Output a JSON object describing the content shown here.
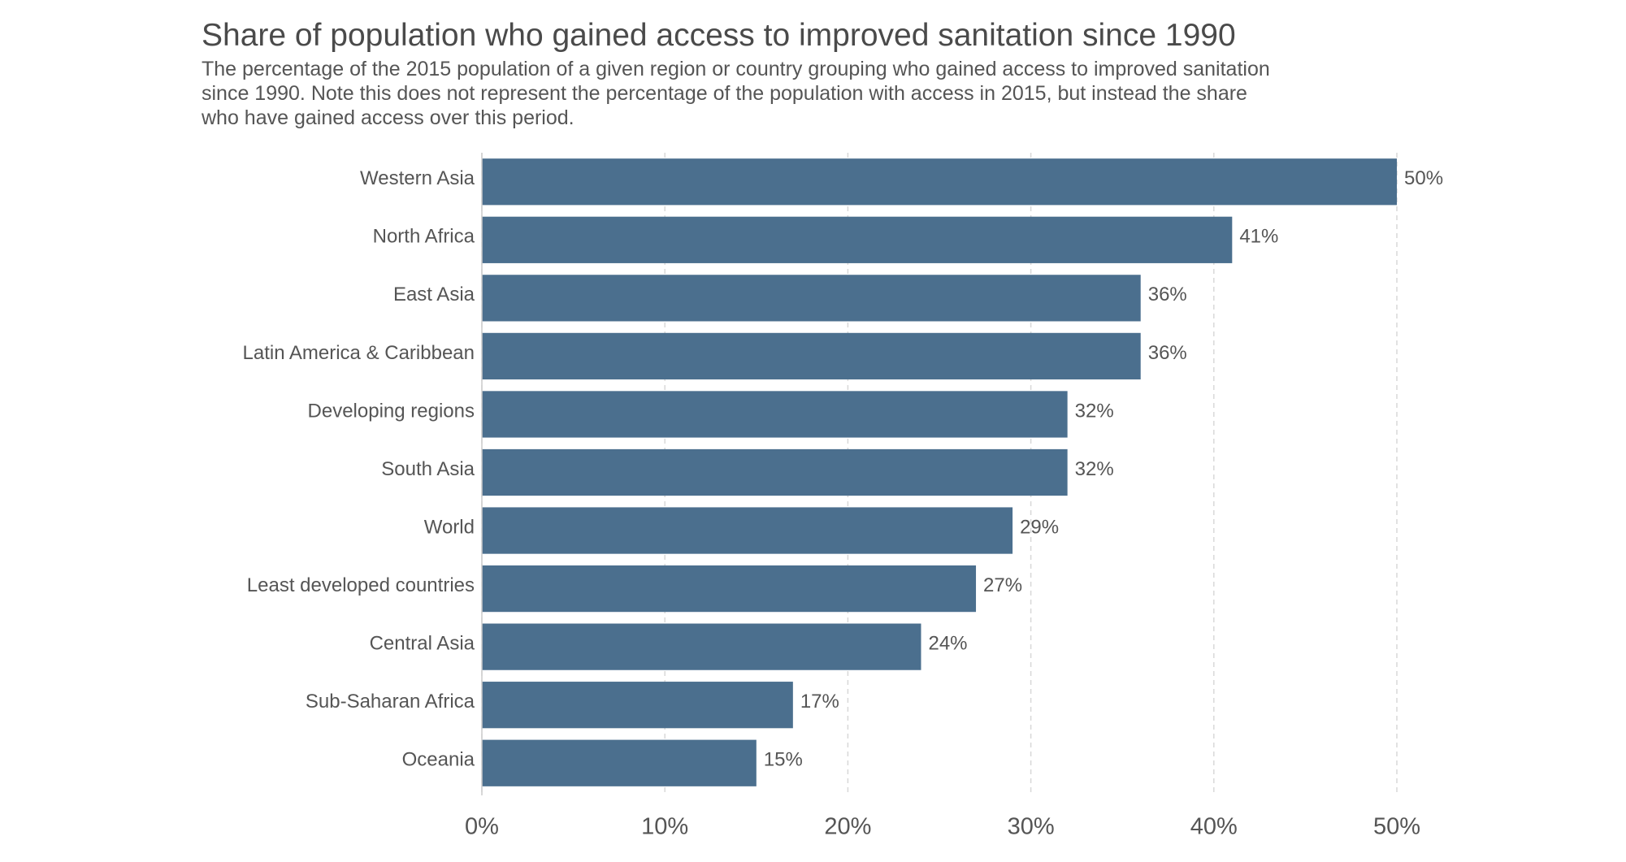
{
  "chart_data": {
    "type": "bar",
    "orientation": "horizontal",
    "title": "Share of population who gained access to improved sanitation since 1990",
    "subtitle": "The percentage of the 2015 population of a given region or country grouping who gained access to improved sanitation since 1990. Note this does not represent the percentage of the population with access in 2015, but instead the share who have gained access over this period.",
    "categories": [
      "Western Asia",
      "North Africa",
      "East Asia",
      "Latin America & Caribbean",
      "Developing regions",
      "South Asia",
      "World",
      "Least developed countries",
      "Central Asia",
      "Sub-Saharan Africa",
      "Oceania"
    ],
    "values": [
      50,
      41,
      36,
      36,
      32,
      32,
      29,
      27,
      24,
      17,
      15
    ],
    "value_labels": [
      "50%",
      "41%",
      "36%",
      "36%",
      "32%",
      "32%",
      "29%",
      "27%",
      "24%",
      "17%",
      "15%"
    ],
    "color": "#4b6f8e",
    "xlim": [
      0,
      50
    ],
    "xticks": [
      {
        "value": 0,
        "label": "0%"
      },
      {
        "value": 10,
        "label": "10%"
      },
      {
        "value": 20,
        "label": "20%"
      },
      {
        "value": 30,
        "label": "30%"
      },
      {
        "value": 40,
        "label": "40%"
      },
      {
        "value": 50,
        "label": "50%"
      }
    ],
    "grid": true
  }
}
